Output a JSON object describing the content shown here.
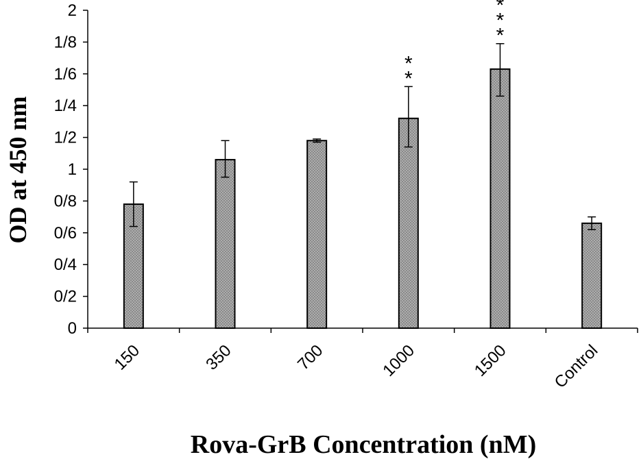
{
  "chart_data": {
    "type": "bar",
    "categories": [
      "150",
      "350",
      "700",
      "1000",
      "1500",
      "Control"
    ],
    "values": [
      0.78,
      1.06,
      1.18,
      1.32,
      1.63,
      0.66
    ],
    "error_low": [
      0.64,
      0.95,
      1.17,
      1.14,
      1.46,
      0.62
    ],
    "error_high": [
      0.92,
      1.18,
      1.19,
      1.52,
      1.79,
      0.7
    ],
    "significance": [
      "",
      "",
      "",
      "**",
      "***",
      ""
    ],
    "xlabel": "Rova-GrB Concentration (nM)",
    "ylabel": "OD at 450 nm",
    "ylim": [
      0,
      2
    ],
    "yticks": [
      0,
      0.2,
      0.4,
      0.6,
      0.8,
      1,
      1.2,
      1.4,
      1.6,
      1.8,
      2
    ],
    "ytick_labels": [
      "0",
      "0/2",
      "0/4",
      "0/6",
      "0/8",
      "1",
      "1/2",
      "1/4",
      "1/6",
      "1/8",
      "2"
    ],
    "grid": false,
    "bar_color": "#8c8c8c",
    "bar_edge_color": "#000000"
  }
}
